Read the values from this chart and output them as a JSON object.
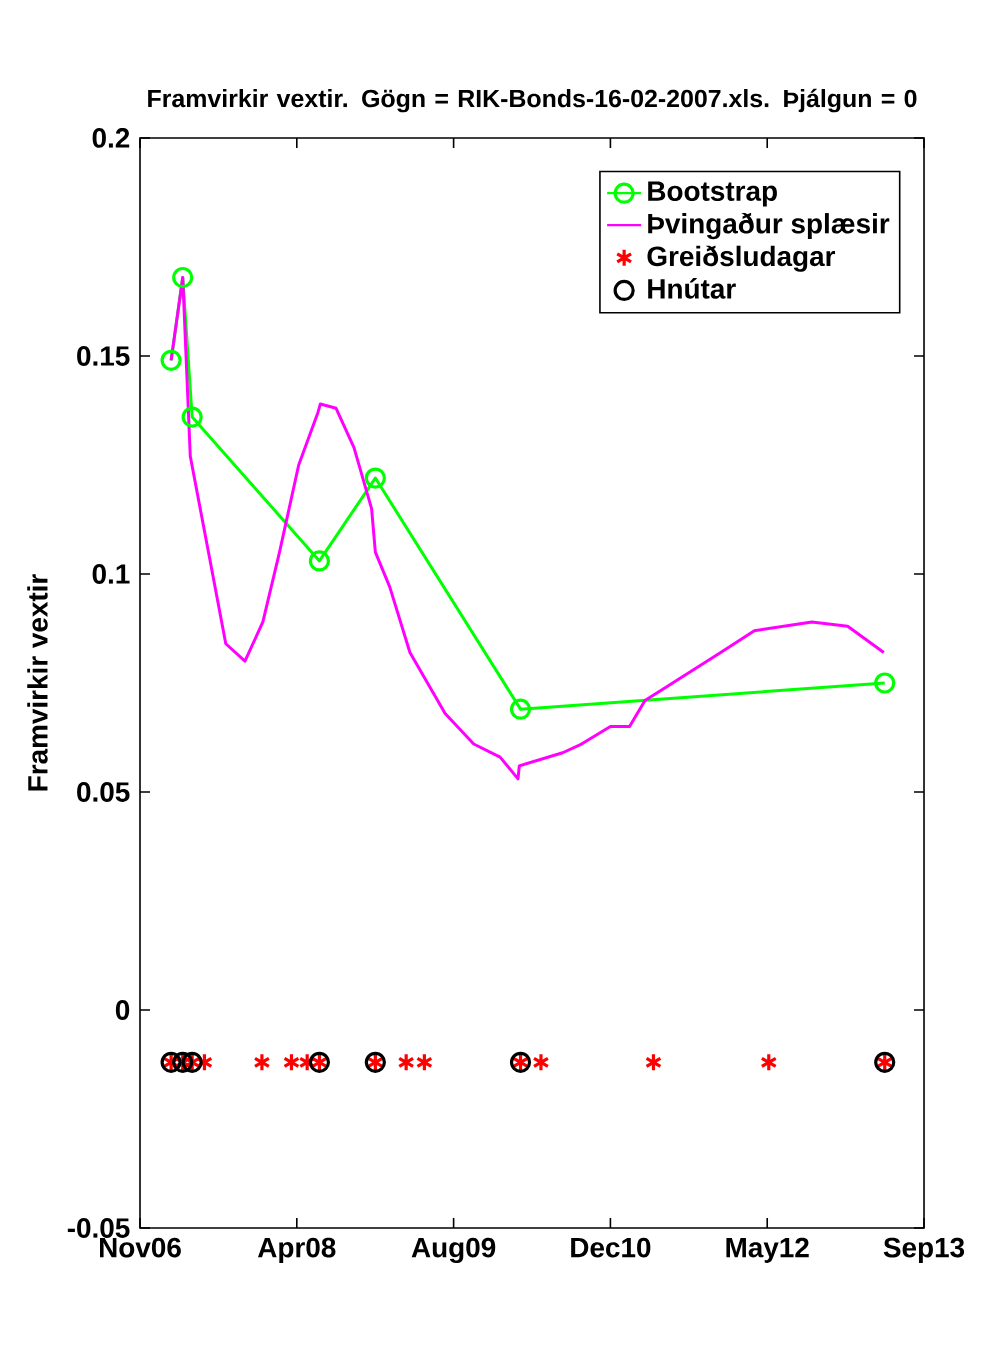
{
  "chart_data": {
    "type": "line",
    "title": "Framvirkir vextir. Gögn = RIK-Bonds-16-02-2007.xls. Þjálgun = 0",
    "ylabel": "Framvirkir vextir",
    "xlim": [
      "2006-11-20",
      "2013-09-19"
    ],
    "xticks": [
      {
        "value": "2006-11-20",
        "label": "Nov06"
      },
      {
        "value": "2008-04-02",
        "label": "Apr08"
      },
      {
        "value": "2009-08-14",
        "label": "Aug09"
      },
      {
        "value": "2010-12-26",
        "label": "Dec10"
      },
      {
        "value": "2012-05-08",
        "label": "May12"
      },
      {
        "value": "2013-09-19",
        "label": "Sep13"
      }
    ],
    "ylim": [
      -0.05,
      0.2
    ],
    "yticks": [
      -0.05,
      0,
      0.05,
      0.1,
      0.15,
      0.2
    ],
    "legend": "top right",
    "series": [
      {
        "name": "Bootstrap",
        "type": "line",
        "color": "#00ff00",
        "marker": "circle",
        "line_style": "solid",
        "x": [
          "2007-02-27",
          "2007-04-05",
          "2007-05-05",
          "2008-06-13",
          "2008-12-08",
          "2010-03-15",
          "2013-05-17"
        ],
        "values": [
          0.149,
          0.168,
          0.136,
          0.103,
          0.122,
          0.069,
          0.075
        ]
      },
      {
        "name": "Þvingaður splæsir",
        "type": "line",
        "color": "#ff00ff",
        "marker": "none",
        "line_style": "solid",
        "x": [
          "2007-02-27",
          "2007-04-05",
          "2007-04-29",
          "2007-06-26",
          "2007-08-20",
          "2007-10-20",
          "2007-12-16",
          "2008-02-07",
          "2008-04-08",
          "2008-06-08",
          "2008-06-16",
          "2008-08-05",
          "2008-10-01",
          "2008-11-26",
          "2008-12-08",
          "2009-01-23",
          "2009-03-28",
          "2009-07-18",
          "2009-10-17",
          "2010-01-09",
          "2010-03-07",
          "2010-03-11",
          "2010-07-27",
          "2010-09-25",
          "2010-12-26",
          "2011-02-25",
          "2011-04-15",
          "2011-07-12",
          "2011-12-12",
          "2012-03-28",
          "2012-09-27",
          "2013-01-19",
          "2013-05-14"
        ],
        "values": [
          0.149,
          0.168,
          0.127,
          0.105,
          0.084,
          0.08,
          0.089,
          0.105,
          0.125,
          0.137,
          0.139,
          0.138,
          0.129,
          0.115,
          0.105,
          0.097,
          0.082,
          0.068,
          0.061,
          0.058,
          0.053,
          0.056,
          0.059,
          0.061,
          0.065,
          0.065,
          0.071,
          0.075,
          0.082,
          0.087,
          0.089,
          0.088,
          0.082
        ]
      },
      {
        "name": "Greiðsludagar",
        "type": "scatter",
        "color": "#ff0000",
        "marker": "cross",
        "x": [
          "2007-02-27",
          "2007-04-05",
          "2007-05-05",
          "2007-06-13",
          "2007-12-13",
          "2008-03-16",
          "2008-05-05",
          "2008-06-13",
          "2008-12-08",
          "2009-03-16",
          "2009-05-13",
          "2010-03-15",
          "2010-05-19",
          "2011-05-12",
          "2012-05-13",
          "2013-05-17"
        ],
        "values": [
          -0.012,
          -0.012,
          -0.012,
          -0.012,
          -0.012,
          -0.012,
          -0.012,
          -0.012,
          -0.012,
          -0.012,
          -0.012,
          -0.012,
          -0.012,
          -0.012,
          -0.012,
          -0.012
        ]
      },
      {
        "name": "Hnútar",
        "type": "scatter",
        "color": "#000000",
        "marker": "circle",
        "x": [
          "2007-02-27",
          "2007-04-05",
          "2007-05-05",
          "2008-06-13",
          "2008-12-08",
          "2010-03-15",
          "2013-05-17"
        ],
        "values": [
          -0.012,
          -0.012,
          -0.012,
          -0.012,
          -0.012,
          -0.012,
          -0.012
        ]
      }
    ]
  }
}
